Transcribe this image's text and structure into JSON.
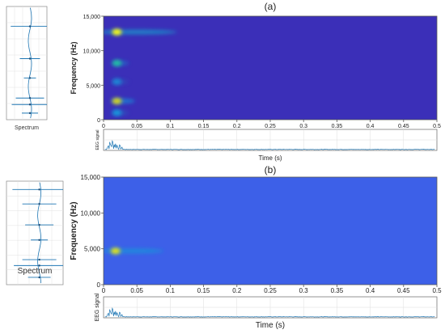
{
  "chart_data": [
    {
      "type": "heatmap",
      "panel_label": "(a)",
      "title": "(a)",
      "xlabel": "Time (s)",
      "ylabel": "Frequency (Hz)",
      "xlim": [
        0,
        0.5
      ],
      "ylim": [
        0,
        15000
      ],
      "x_ticks": [
        "0",
        "0.05",
        "0.1",
        "0.15",
        "0.2",
        "0.25",
        "0.3",
        "0.35",
        "0.4",
        "0.45",
        "0.5"
      ],
      "y_ticks": [
        "0",
        "5,000",
        "10,000",
        "15,000"
      ],
      "background_color": "#3b2fb8",
      "hotspots": [
        {
          "t": 0.02,
          "f": 12700,
          "intensity": 1.0,
          "t_spread": 0.05
        },
        {
          "t": 0.02,
          "f": 8200,
          "intensity": 0.55,
          "t_spread": 0.01
        },
        {
          "t": 0.02,
          "f": 5500,
          "intensity": 0.3,
          "t_spread": 0.01
        },
        {
          "t": 0.02,
          "f": 2700,
          "intensity": 0.85,
          "t_spread": 0.015
        },
        {
          "t": 0.02,
          "f": 1000,
          "intensity": 0.35,
          "t_spread": 0.01
        }
      ],
      "spectrum_label": "Spectrum",
      "eeg_label": "EEG signal"
    },
    {
      "type": "heatmap",
      "panel_label": "(b)",
      "title": "(b)",
      "xlabel": "Time (s)",
      "ylabel": "Frequency (Hz)",
      "xlim": [
        0,
        0.5
      ],
      "ylim": [
        0,
        15000
      ],
      "x_ticks": [
        "0",
        "0.05",
        "0.1",
        "0.15",
        "0.2",
        "0.25",
        "0.3",
        "0.35",
        "0.4",
        "0.45",
        "0.5"
      ],
      "y_ticks": [
        "0",
        "5,000",
        "10,000",
        "15,000"
      ],
      "background_color": "#3d60e8",
      "hotspots": [
        {
          "t": 0.018,
          "f": 4700,
          "intensity": 0.9,
          "t_spread": 0.04
        }
      ],
      "spectrum_label": "Spectrum",
      "eeg_label": "EEG signal"
    }
  ]
}
